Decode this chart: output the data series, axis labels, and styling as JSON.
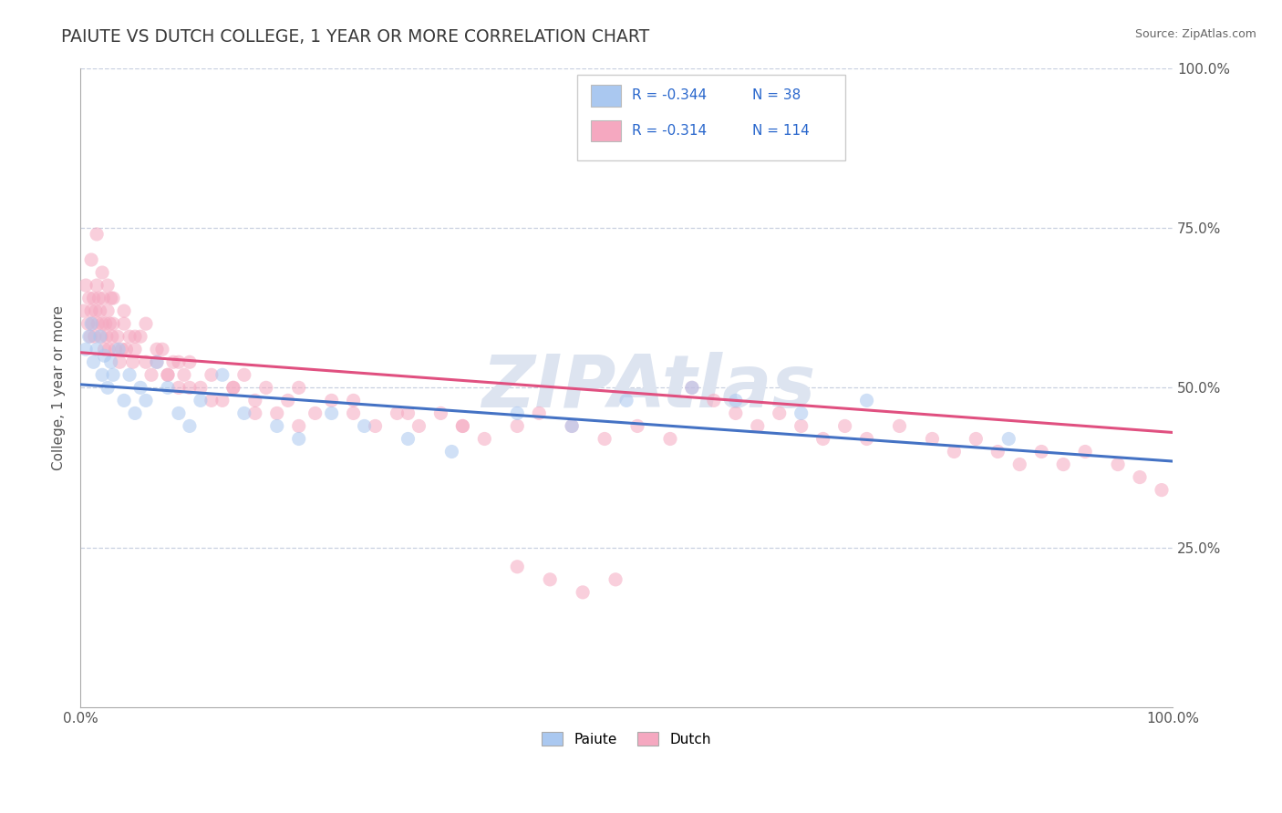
{
  "title": "PAIUTE VS DUTCH COLLEGE, 1 YEAR OR MORE CORRELATION CHART",
  "source_text": "Source: ZipAtlas.com",
  "ylabel": "College, 1 year or more",
  "xmin": 0.0,
  "xmax": 1.0,
  "ymin": 0.0,
  "ymax": 1.0,
  "legend_entries": [
    {
      "label": "Paiute",
      "R": "-0.344",
      "N": "38",
      "color": "#aac8f0",
      "line_color": "#4472c4"
    },
    {
      "label": "Dutch",
      "R": "-0.314",
      "N": "114",
      "color": "#f5a8c0",
      "line_color": "#e05080"
    }
  ],
  "paiute_scatter_x": [
    0.005,
    0.008,
    0.01,
    0.012,
    0.015,
    0.018,
    0.02,
    0.022,
    0.025,
    0.028,
    0.03,
    0.035,
    0.04,
    0.045,
    0.05,
    0.055,
    0.06,
    0.07,
    0.08,
    0.09,
    0.1,
    0.11,
    0.13,
    0.15,
    0.18,
    0.2,
    0.23,
    0.26,
    0.3,
    0.34,
    0.4,
    0.45,
    0.5,
    0.56,
    0.6,
    0.66,
    0.72,
    0.85
  ],
  "paiute_scatter_y": [
    0.56,
    0.58,
    0.6,
    0.54,
    0.56,
    0.58,
    0.52,
    0.55,
    0.5,
    0.54,
    0.52,
    0.56,
    0.48,
    0.52,
    0.46,
    0.5,
    0.48,
    0.54,
    0.5,
    0.46,
    0.44,
    0.48,
    0.52,
    0.46,
    0.44,
    0.42,
    0.46,
    0.44,
    0.42,
    0.4,
    0.46,
    0.44,
    0.48,
    0.5,
    0.48,
    0.46,
    0.48,
    0.42
  ],
  "dutch_scatter_x": [
    0.003,
    0.005,
    0.007,
    0.008,
    0.009,
    0.01,
    0.011,
    0.012,
    0.013,
    0.014,
    0.015,
    0.016,
    0.017,
    0.018,
    0.019,
    0.02,
    0.021,
    0.022,
    0.023,
    0.024,
    0.025,
    0.026,
    0.027,
    0.028,
    0.029,
    0.03,
    0.032,
    0.034,
    0.036,
    0.038,
    0.04,
    0.042,
    0.045,
    0.048,
    0.05,
    0.055,
    0.06,
    0.065,
    0.07,
    0.075,
    0.08,
    0.085,
    0.09,
    0.095,
    0.1,
    0.11,
    0.12,
    0.13,
    0.14,
    0.15,
    0.16,
    0.17,
    0.18,
    0.19,
    0.2,
    0.215,
    0.23,
    0.25,
    0.27,
    0.29,
    0.31,
    0.33,
    0.35,
    0.37,
    0.4,
    0.42,
    0.45,
    0.48,
    0.51,
    0.54,
    0.56,
    0.58,
    0.6,
    0.62,
    0.64,
    0.66,
    0.68,
    0.7,
    0.72,
    0.75,
    0.78,
    0.8,
    0.82,
    0.84,
    0.86,
    0.88,
    0.9,
    0.92,
    0.95,
    0.97,
    0.99,
    0.01,
    0.015,
    0.02,
    0.025,
    0.03,
    0.04,
    0.05,
    0.06,
    0.07,
    0.08,
    0.09,
    0.1,
    0.12,
    0.14,
    0.16,
    0.2,
    0.25,
    0.3,
    0.35,
    0.4,
    0.43,
    0.46,
    0.49
  ],
  "dutch_scatter_y": [
    0.62,
    0.66,
    0.6,
    0.64,
    0.58,
    0.62,
    0.6,
    0.64,
    0.58,
    0.62,
    0.66,
    0.6,
    0.64,
    0.62,
    0.58,
    0.6,
    0.64,
    0.56,
    0.6,
    0.58,
    0.62,
    0.56,
    0.6,
    0.64,
    0.58,
    0.6,
    0.56,
    0.58,
    0.54,
    0.56,
    0.6,
    0.56,
    0.58,
    0.54,
    0.56,
    0.58,
    0.54,
    0.52,
    0.54,
    0.56,
    0.52,
    0.54,
    0.5,
    0.52,
    0.54,
    0.5,
    0.52,
    0.48,
    0.5,
    0.52,
    0.48,
    0.5,
    0.46,
    0.48,
    0.5,
    0.46,
    0.48,
    0.46,
    0.44,
    0.46,
    0.44,
    0.46,
    0.44,
    0.42,
    0.44,
    0.46,
    0.44,
    0.42,
    0.44,
    0.42,
    0.5,
    0.48,
    0.46,
    0.44,
    0.46,
    0.44,
    0.42,
    0.44,
    0.42,
    0.44,
    0.42,
    0.4,
    0.42,
    0.4,
    0.38,
    0.4,
    0.38,
    0.4,
    0.38,
    0.36,
    0.34,
    0.7,
    0.74,
    0.68,
    0.66,
    0.64,
    0.62,
    0.58,
    0.6,
    0.56,
    0.52,
    0.54,
    0.5,
    0.48,
    0.5,
    0.46,
    0.44,
    0.48,
    0.46,
    0.44,
    0.22,
    0.2,
    0.18,
    0.2
  ],
  "title_color": "#3a3a3a",
  "title_fontsize": 13.5,
  "axis_label_color": "#555555",
  "tick_color": "#555555",
  "grid_color": "#c8d0e0",
  "source_color": "#666666",
  "watermark_text": "ZIPAtlas",
  "watermark_color": "#dde4f0",
  "watermark_fontsize": 58,
  "scatter_size": 120,
  "scatter_alpha": 0.55,
  "legend_R_color": "#2866cc",
  "legend_N_color": "#2866cc",
  "line_width": 2.2,
  "paiute_line_start_y": 0.505,
  "paiute_line_end_y": 0.385,
  "dutch_line_start_y": 0.555,
  "dutch_line_end_y": 0.43
}
